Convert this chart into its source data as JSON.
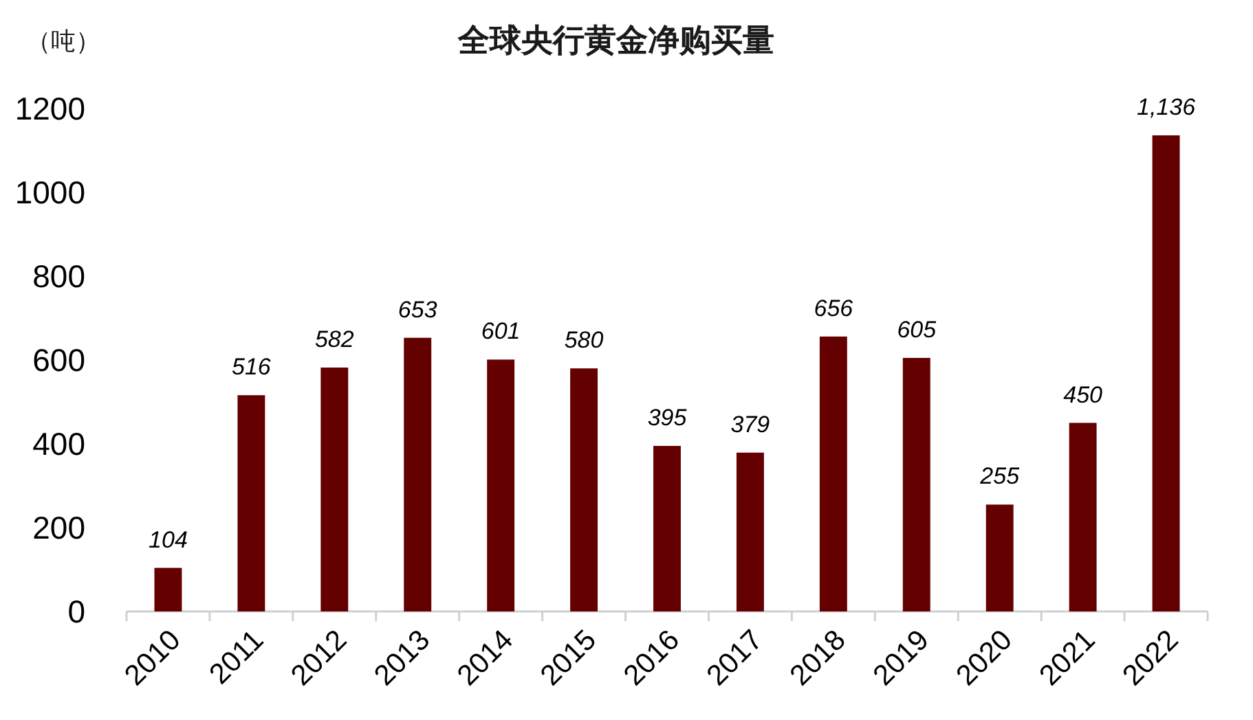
{
  "chart_data": {
    "type": "bar",
    "title": "全球央行黄金净购买量",
    "ylabel": "（吨）",
    "categories": [
      "2010",
      "2011",
      "2012",
      "2013",
      "2014",
      "2015",
      "2016",
      "2017",
      "2018",
      "2019",
      "2020",
      "2021",
      "2022"
    ],
    "values": [
      104,
      516,
      582,
      653,
      601,
      580,
      395,
      379,
      656,
      605,
      255,
      450,
      1136
    ],
    "value_labels": [
      "104",
      "516",
      "582",
      "653",
      "601",
      "580",
      "395",
      "379",
      "656",
      "605",
      "255",
      "450",
      "1,136"
    ],
    "color": "#640000",
    "ylim": [
      0,
      1200
    ],
    "yticks": [
      0,
      200,
      400,
      600,
      800,
      1000,
      1200
    ]
  }
}
